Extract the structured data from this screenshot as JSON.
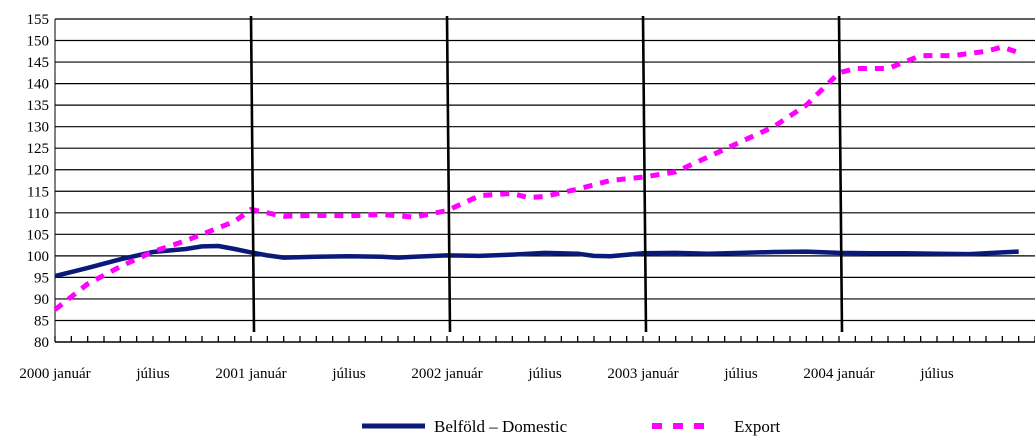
{
  "chart_data": {
    "type": "line",
    "title": "",
    "xlabel": "",
    "ylabel": "",
    "ylim": [
      80,
      155
    ],
    "y_ticks": [
      80,
      85,
      90,
      95,
      100,
      105,
      110,
      115,
      120,
      125,
      130,
      135,
      140,
      145,
      150,
      155
    ],
    "x_range_months": [
      "2000-01",
      "2005-01"
    ],
    "x_tick_labels": [
      {
        "month": "2000-01",
        "label": "2000 január"
      },
      {
        "month": "2000-07",
        "label": "július"
      },
      {
        "month": "2001-01",
        "label": "2001 január"
      },
      {
        "month": "2001-07",
        "label": "július"
      },
      {
        "month": "2002-01",
        "label": "2002 január"
      },
      {
        "month": "2002-07",
        "label": "július"
      },
      {
        "month": "2003-01",
        "label": "2003 január"
      },
      {
        "month": "2003-07",
        "label": "július"
      },
      {
        "month": "2004-01",
        "label": "2004 január"
      },
      {
        "month": "2004-07",
        "label": "július"
      }
    ],
    "year_separators": [
      "2001-01",
      "2002-01",
      "2003-01",
      "2004-01"
    ],
    "grid": "horizontal",
    "legend_position": "bottom",
    "series": [
      {
        "name": "Belföld – Domestic",
        "style": "solid",
        "color": "#0a1a7a",
        "points": [
          [
            "2000-01",
            95.3
          ],
          [
            "2000-03",
            97.2
          ],
          [
            "2000-05",
            99.2
          ],
          [
            "2000-07",
            100.9
          ],
          [
            "2000-09",
            101.6
          ],
          [
            "2000-10",
            102.2
          ],
          [
            "2000-11",
            102.3
          ],
          [
            "2000-12",
            101.6
          ],
          [
            "2001-01",
            100.8
          ],
          [
            "2001-02",
            100.1
          ],
          [
            "2001-03",
            99.6
          ],
          [
            "2001-05",
            99.8
          ],
          [
            "2001-07",
            99.9
          ],
          [
            "2001-09",
            99.8
          ],
          [
            "2001-10",
            99.6
          ],
          [
            "2001-11",
            99.8
          ],
          [
            "2002-01",
            100.1
          ],
          [
            "2002-03",
            100.0
          ],
          [
            "2002-05",
            100.3
          ],
          [
            "2002-07",
            100.7
          ],
          [
            "2002-09",
            100.5
          ],
          [
            "2002-10",
            100.0
          ],
          [
            "2002-11",
            99.9
          ],
          [
            "2003-01",
            100.6
          ],
          [
            "2003-03",
            100.7
          ],
          [
            "2003-05",
            100.5
          ],
          [
            "2003-07",
            100.7
          ],
          [
            "2003-09",
            100.9
          ],
          [
            "2003-11",
            101.0
          ],
          [
            "2004-01",
            100.7
          ],
          [
            "2004-03",
            100.6
          ],
          [
            "2004-05",
            100.6
          ],
          [
            "2004-07",
            100.5
          ],
          [
            "2004-09",
            100.4
          ],
          [
            "2004-11",
            100.8
          ],
          [
            "2004-12",
            101.0
          ]
        ]
      },
      {
        "name": "Export",
        "style": "dashed",
        "color": "#ff00ff",
        "points": [
          [
            "2000-01",
            87.5
          ],
          [
            "2000-03",
            93.5
          ],
          [
            "2000-05",
            97.5
          ],
          [
            "2000-07",
            101.0
          ],
          [
            "2000-09",
            103.5
          ],
          [
            "2000-10",
            105.0
          ],
          [
            "2000-12",
            108.0
          ],
          [
            "2001-01",
            110.8
          ],
          [
            "2001-02",
            110.0
          ],
          [
            "2001-03",
            109.2
          ],
          [
            "2001-05",
            109.4
          ],
          [
            "2001-07",
            109.3
          ],
          [
            "2001-09",
            109.6
          ],
          [
            "2001-11",
            109.0
          ],
          [
            "2002-01",
            110.5
          ],
          [
            "2002-03",
            114.0
          ],
          [
            "2002-05",
            114.5
          ],
          [
            "2002-06",
            113.5
          ],
          [
            "2002-07",
            113.8
          ],
          [
            "2002-09",
            115.5
          ],
          [
            "2002-11",
            117.5
          ],
          [
            "2003-01",
            118.3
          ],
          [
            "2003-03",
            119.5
          ],
          [
            "2003-05",
            123.0
          ],
          [
            "2003-07",
            126.5
          ],
          [
            "2003-09",
            130.0
          ],
          [
            "2003-11",
            135.0
          ],
          [
            "2004-01",
            142.5
          ],
          [
            "2004-02",
            143.5
          ],
          [
            "2004-04",
            143.5
          ],
          [
            "2004-06",
            146.5
          ],
          [
            "2004-08",
            146.5
          ],
          [
            "2004-10",
            147.5
          ],
          [
            "2004-11",
            148.5
          ],
          [
            "2004-12",
            147.2
          ]
        ]
      }
    ]
  }
}
